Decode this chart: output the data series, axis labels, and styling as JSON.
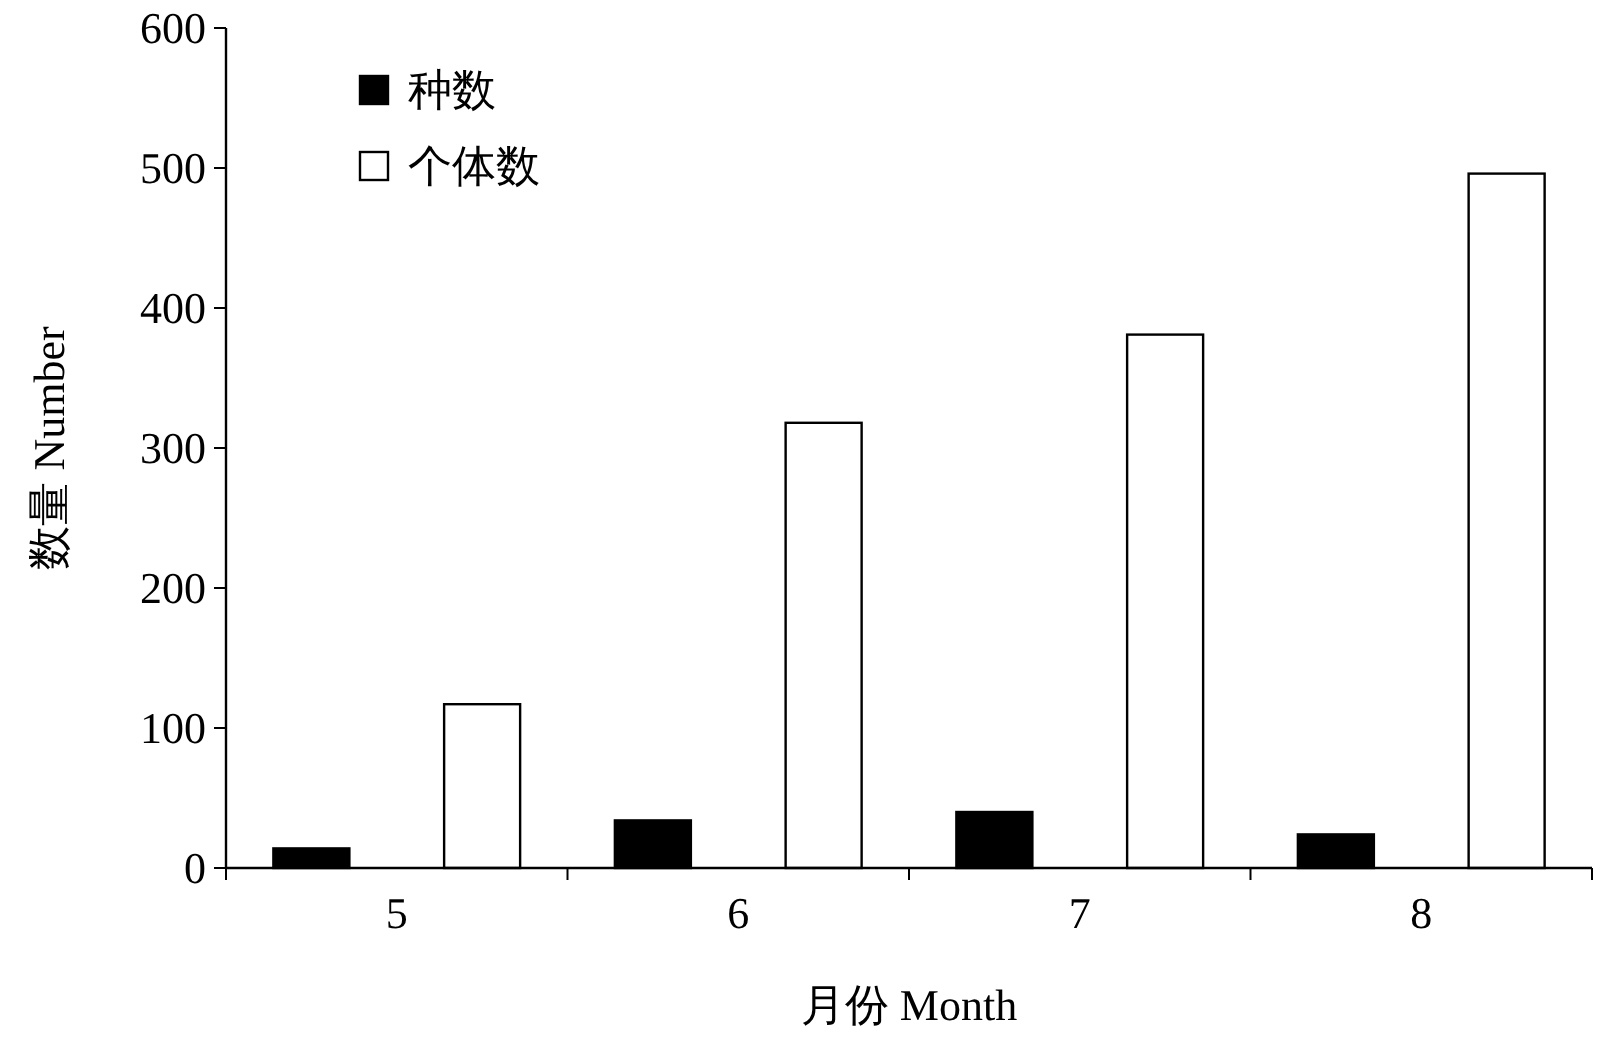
{
  "chart_data": {
    "type": "bar",
    "xlabel": "月份 Month",
    "ylabel": "数量 Number",
    "categories": [
      "5",
      "6",
      "7",
      "8"
    ],
    "series": [
      {
        "name": "种数",
        "color": "#000000",
        "values": [
          14,
          34,
          40,
          24
        ]
      },
      {
        "name": "个体数",
        "color": "#ffffff",
        "values": [
          117,
          318,
          381,
          496
        ]
      }
    ],
    "ylim": [
      0,
      600
    ],
    "yticks": [
      0,
      100,
      200,
      300,
      400,
      500,
      600
    ],
    "legend": "top left",
    "grid": false
  }
}
